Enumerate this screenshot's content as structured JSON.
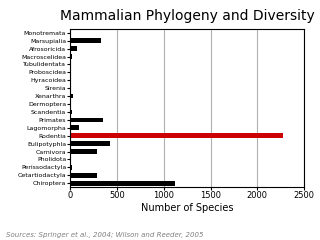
{
  "chart_data": {
    "type": "bar",
    "orientation": "horizontal",
    "title": "Mammalian Phylogeny and Diversity",
    "x_label": "Number of Species",
    "annotation": "Sources: Springer et al., 2004; Wilson and Reeder, 2005",
    "categories": [
      "Monotremata",
      "Marsupialia",
      "Afrosoricida",
      "Macroscelidea",
      "Tubulidentata",
      "Proboscidea",
      "Hyracoidea",
      "Sirenia",
      "Xenarthra",
      "Dermoptera",
      "Scandentia",
      "Primates",
      "Lagomorpha",
      "Rodentia",
      "Eulipotyphla",
      "Carnivora",
      "Pholidota",
      "Perissodactyla",
      "Cetartiodactyla",
      "Chiroptera"
    ],
    "values": [
      5,
      330,
      75,
      15,
      1,
      3,
      5,
      5,
      29,
      2,
      20,
      350,
      92,
      2277,
      428,
      286,
      8,
      17,
      290,
      1116
    ],
    "colors": [
      "black",
      "black",
      "black",
      "black",
      "black",
      "black",
      "black",
      "black",
      "black",
      "black",
      "black",
      "black",
      "black",
      "#cc0000",
      "black",
      "black",
      "black",
      "black",
      "black",
      "black"
    ],
    "xlim": [
      0,
      2500
    ],
    "xticks": [
      0,
      500,
      1000,
      1500,
      2000,
      2500
    ],
    "grid": true
  }
}
